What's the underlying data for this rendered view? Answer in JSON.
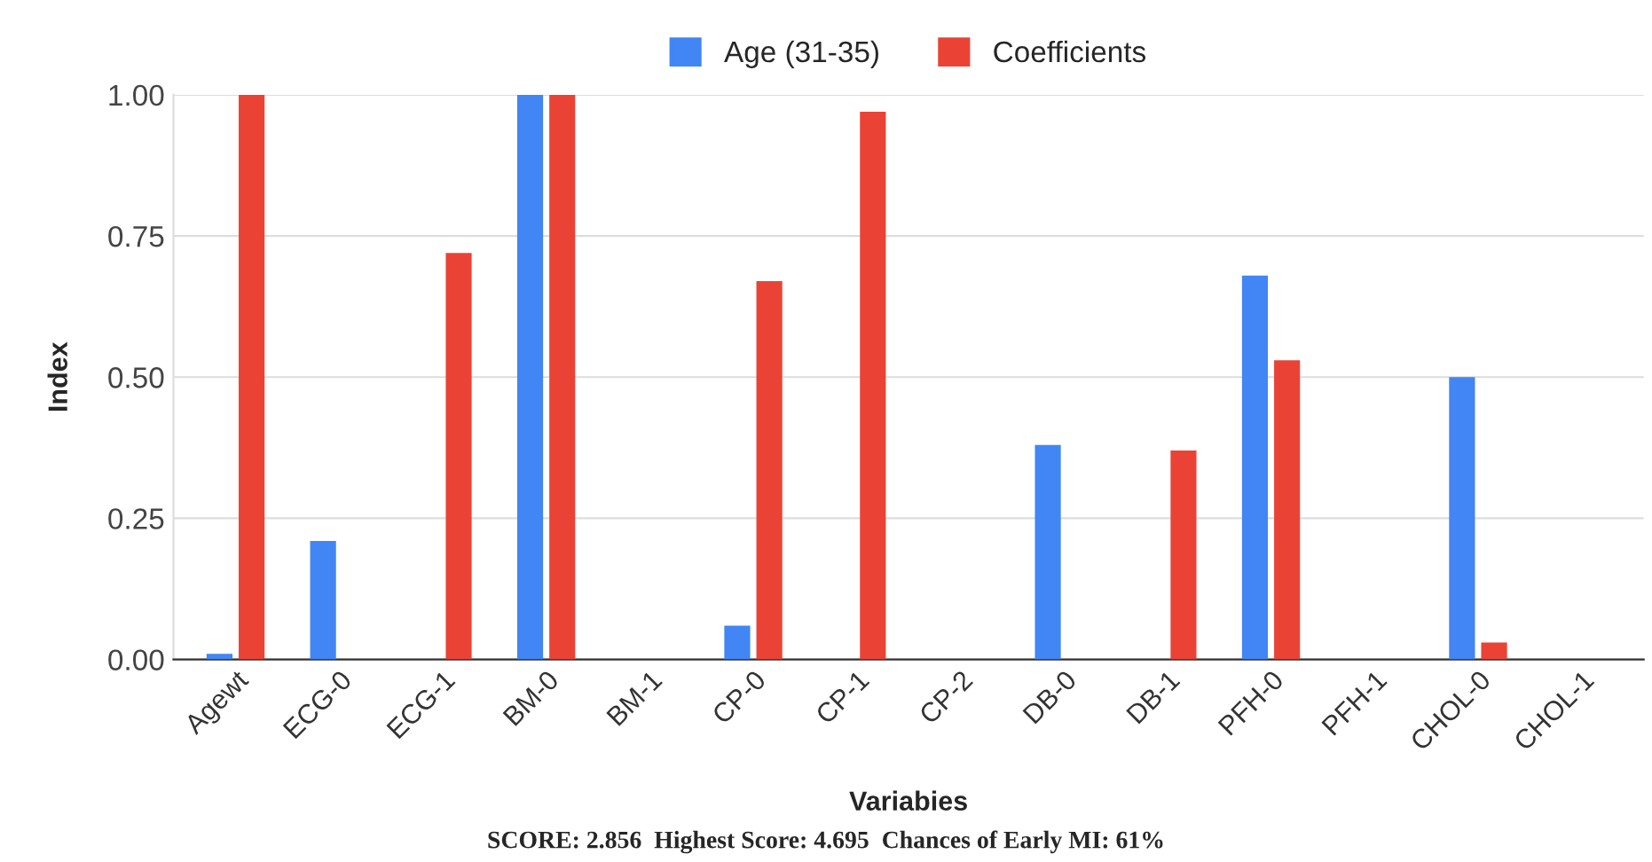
{
  "chart_data": {
    "type": "bar",
    "xlabel": "Variabies",
    "ylabel": "Index",
    "categories": [
      "Agewt",
      "ECG-0",
      "ECG-1",
      "BM-0",
      "BM-1",
      "CP-0",
      "CP-1",
      "CP-2",
      "DB-0",
      "DB-1",
      "PFH-0",
      "PFH-1",
      "CHOL-0",
      "CHOL-1"
    ],
    "series": [
      {
        "name": "Age (31-35)",
        "color": "#4285f4",
        "values": [
          0.01,
          0.21,
          null,
          1.0,
          null,
          0.06,
          null,
          null,
          0.38,
          null,
          0.68,
          null,
          0.5,
          null
        ]
      },
      {
        "name": "Coefficients",
        "color": "#ea4335",
        "values": [
          1.0,
          null,
          0.72,
          1.0,
          null,
          0.67,
          0.97,
          null,
          null,
          0.37,
          0.53,
          null,
          0.03,
          null
        ]
      }
    ],
    "ylim": [
      0,
      1.0
    ],
    "yticks": [
      {
        "value": 0,
        "label": "0.00"
      },
      {
        "value": 0.25,
        "label": "0.25"
      },
      {
        "value": 0.5,
        "label": "0.50"
      },
      {
        "value": 0.75,
        "label": "0.75"
      },
      {
        "value": 1.0,
        "label": "1.00"
      }
    ],
    "grid": "y",
    "legend": "top",
    "annotations": [
      "SCORE: 2.856  Highest Score: 4.695  Chances of Early MI: 61%"
    ]
  }
}
